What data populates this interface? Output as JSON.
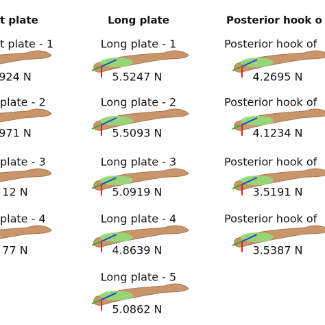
{
  "columns": [
    {
      "header": "t plate",
      "items": [
        {
          "label": "t plate - 1",
          "force": "924 N"
        },
        {
          "label": "plate - 2",
          "force": "971 N"
        },
        {
          "label": "plate - 3",
          "force": "12 N"
        },
        {
          "label": "plate - 4",
          "force": "77 N"
        }
      ]
    },
    {
      "header": "Long plate",
      "items": [
        {
          "label": "Long plate - 1",
          "force": "5.5247 N"
        },
        {
          "label": "Long plate - 2",
          "force": "5.5093 N"
        },
        {
          "label": "Long plate - 3",
          "force": "5.0919 N"
        },
        {
          "label": "Long plate - 4",
          "force": "4.8639 N"
        },
        {
          "label": "Long plate - 5",
          "force": "5.0862 N"
        }
      ]
    },
    {
      "header": "Posterior hook o",
      "items": [
        {
          "label": "Posterior hook of",
          "force": "4.2695 N"
        },
        {
          "label": "Posterior hook of",
          "force": "4.1234 N"
        },
        {
          "label": "Posterior hook of",
          "force": "3.5191 N"
        },
        {
          "label": "Posterior hook of",
          "force": "3.5387 N"
        }
      ]
    }
  ]
}
